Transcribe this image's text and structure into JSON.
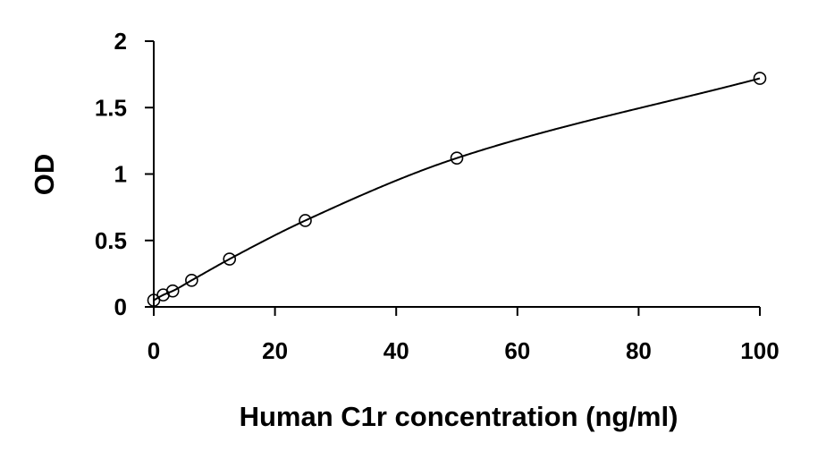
{
  "chart_data": {
    "type": "scatter",
    "title": "",
    "xlabel": "Human C1r concentration (ng/ml)",
    "ylabel": "OD",
    "xlim": [
      0,
      100
    ],
    "ylim": [
      0,
      2
    ],
    "x_ticks": [
      {
        "value": 0,
        "label": "0"
      },
      {
        "value": 20,
        "label": "20"
      },
      {
        "value": 40,
        "label": "40"
      },
      {
        "value": 60,
        "label": "60"
      },
      {
        "value": 80,
        "label": "80"
      },
      {
        "value": 100,
        "label": "100"
      }
    ],
    "y_ticks": [
      {
        "value": 0,
        "label": "0"
      },
      {
        "value": 0.5,
        "label": "0.5"
      },
      {
        "value": 1,
        "label": "1"
      },
      {
        "value": 1.5,
        "label": "1.5"
      },
      {
        "value": 2,
        "label": "2"
      }
    ],
    "grid": false,
    "legend": "none",
    "series": [
      {
        "marker": "open-circle",
        "color": "#000000",
        "x": [
          0,
          1.56,
          3.13,
          6.25,
          12.5,
          25,
          50,
          100
        ],
        "y": [
          0.05,
          0.09,
          0.12,
          0.2,
          0.36,
          0.65,
          1.12,
          1.72
        ]
      }
    ],
    "fit_line": {
      "type": "smooth curve through points",
      "color": "#000000"
    }
  }
}
